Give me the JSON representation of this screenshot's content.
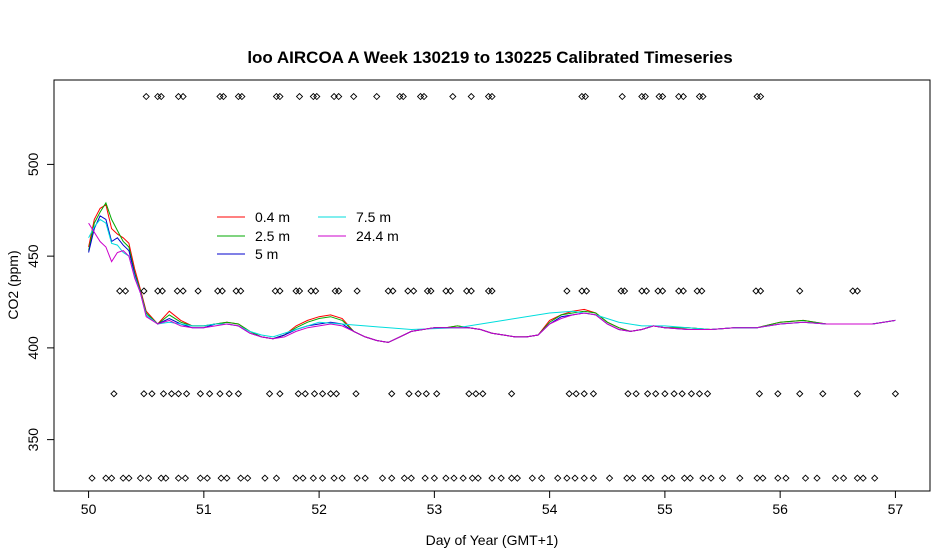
{
  "chart_data": {
    "type": "line",
    "title": "loo AIRCOA A  Week 130219 to 130225  Calibrated Timeseries",
    "xlabel": "Day of Year (GMT+1)",
    "ylabel": "CO2 (ppm)",
    "xlim": [
      49.7,
      57.3
    ],
    "ylim": [
      322,
      546
    ],
    "x_ticks": [
      50,
      51,
      52,
      53,
      54,
      55,
      56,
      57
    ],
    "y_ticks": [
      350,
      400,
      450,
      500
    ],
    "grid": false,
    "legend_position": "upper-left",
    "series": [
      {
        "name": "0.4 m",
        "color": "#ff0000",
        "x": [
          50.0,
          50.05,
          50.1,
          50.15,
          50.2,
          50.25,
          50.3,
          50.35,
          50.4,
          50.45,
          50.5,
          50.6,
          50.7,
          50.8,
          50.9,
          51.0,
          51.1,
          51.2,
          51.3,
          51.4,
          51.5,
          51.6,
          51.7,
          51.8,
          51.9,
          52.0,
          52.1,
          52.2,
          52.3,
          52.4,
          52.5,
          52.6,
          52.7,
          52.8,
          52.9,
          53.0,
          53.1,
          53.2,
          53.3,
          53.4,
          53.5,
          53.6,
          53.7,
          53.8,
          53.9,
          54.0,
          54.1,
          54.2,
          54.3,
          54.4,
          54.5,
          54.6,
          54.7,
          54.8,
          54.9,
          55.0,
          55.2,
          55.4,
          55.6,
          55.8,
          56.0,
          56.2,
          56.4,
          56.6,
          56.8,
          57.0
        ],
        "y": [
          455,
          470,
          476,
          478,
          465,
          462,
          460,
          457,
          443,
          432,
          420,
          413,
          420,
          415,
          412,
          412,
          413,
          414,
          413,
          409,
          406,
          405,
          407,
          412,
          415,
          417,
          418,
          416,
          409,
          406,
          404,
          403,
          406,
          409,
          410,
          411,
          411,
          412,
          411,
          410,
          408,
          407,
          406,
          406,
          407,
          415,
          418,
          420,
          421,
          419,
          414,
          411,
          409,
          410,
          412,
          411,
          411,
          410,
          411,
          411,
          414,
          415,
          413,
          413,
          413,
          415
        ]
      },
      {
        "name": "2.5 m",
        "color": "#00aa00",
        "x": [
          50.0,
          50.05,
          50.1,
          50.15,
          50.2,
          50.25,
          50.3,
          50.35,
          50.4,
          50.45,
          50.5,
          50.6,
          50.7,
          50.8,
          50.9,
          51.0,
          51.1,
          51.2,
          51.3,
          51.4,
          51.5,
          51.6,
          51.7,
          51.8,
          51.9,
          52.0,
          52.1,
          52.2,
          52.3,
          52.4,
          52.5,
          52.6,
          52.7,
          52.8,
          52.9,
          53.0,
          53.1,
          53.2,
          53.3,
          53.4,
          53.5,
          53.6,
          53.7,
          53.8,
          53.9,
          54.0,
          54.1,
          54.2,
          54.3,
          54.4,
          54.5,
          54.6,
          54.7,
          54.8,
          54.9,
          55.0,
          55.2,
          55.4,
          55.6,
          55.8,
          56.0,
          56.2,
          56.4,
          56.6,
          56.8,
          57.0
        ],
        "y": [
          453,
          468,
          474,
          479,
          470,
          464,
          458,
          455,
          441,
          431,
          419,
          413,
          418,
          414,
          412,
          412,
          413,
          414,
          413,
          409,
          406,
          405,
          407,
          411,
          414,
          416,
          417,
          415,
          409,
          406,
          404,
          403,
          406,
          409,
          410,
          411,
          411,
          412,
          411,
          410,
          408,
          407,
          406,
          406,
          407,
          414,
          418,
          419,
          420,
          419,
          414,
          411,
          409,
          410,
          412,
          411,
          411,
          410,
          411,
          411,
          414,
          415,
          413,
          413,
          413,
          415
        ]
      },
      {
        "name": "5 m",
        "color": "#0000cc",
        "x": [
          50.0,
          50.05,
          50.1,
          50.15,
          50.2,
          50.25,
          50.3,
          50.35,
          50.4,
          50.45,
          50.5,
          50.6,
          50.7,
          50.8,
          50.9,
          51.0,
          51.1,
          51.2,
          51.3,
          51.4,
          51.5,
          51.6,
          51.7,
          51.8,
          51.9,
          52.0,
          52.1,
          52.2,
          52.3,
          52.4,
          52.5,
          52.6,
          52.7,
          52.8,
          52.9,
          53.0,
          53.1,
          53.2,
          53.3,
          53.4,
          53.5,
          53.6,
          53.7,
          53.8,
          53.9,
          54.0,
          54.1,
          54.2,
          54.3,
          54.4,
          54.5,
          54.6,
          54.7,
          54.8,
          54.9,
          55.0,
          55.2,
          55.4,
          55.6,
          55.8,
          56.0,
          56.2,
          56.4,
          56.6,
          56.8,
          57.0
        ],
        "y": [
          452,
          465,
          472,
          470,
          458,
          460,
          456,
          453,
          440,
          430,
          418,
          413,
          416,
          413,
          411,
          411,
          413,
          413,
          412,
          408,
          406,
          405,
          407,
          410,
          412,
          413,
          414,
          413,
          409,
          406,
          404,
          403,
          406,
          409,
          410,
          411,
          411,
          411,
          411,
          410,
          408,
          407,
          406,
          406,
          407,
          413,
          417,
          418,
          419,
          418,
          413,
          410,
          409,
          410,
          412,
          411,
          410,
          410,
          411,
          411,
          413,
          414,
          413,
          413,
          413,
          415
        ]
      },
      {
        "name": "7.5 m",
        "color": "#00dddd",
        "x": [
          50.0,
          50.05,
          50.1,
          50.15,
          50.2,
          50.25,
          50.3,
          50.35,
          50.4,
          50.45,
          50.5,
          50.6,
          50.7,
          50.8,
          50.9,
          51.0,
          51.1,
          51.2,
          51.3,
          51.4,
          51.5,
          51.6,
          51.8,
          52.0,
          52.4,
          52.8,
          53.2,
          53.6,
          54.0,
          54.2,
          54.4,
          54.6,
          54.8,
          55.0,
          55.2,
          55.4,
          55.6,
          55.8,
          56.0,
          56.2,
          56.4,
          56.6,
          56.8,
          57.0
        ],
        "y": [
          460,
          466,
          470,
          468,
          457,
          456,
          452,
          450,
          439,
          430,
          418,
          413,
          414,
          413,
          412,
          412,
          413,
          413,
          412,
          409,
          407,
          406,
          410,
          414,
          412,
          410,
          411,
          415,
          419,
          420,
          418,
          414,
          412,
          412,
          411,
          410,
          411,
          411,
          413,
          414,
          413,
          413,
          413,
          415
        ]
      },
      {
        "name": "24.4 m",
        "color": "#cc00cc",
        "x": [
          50.0,
          50.05,
          50.1,
          50.15,
          50.2,
          50.25,
          50.3,
          50.35,
          50.4,
          50.45,
          50.5,
          50.6,
          50.7,
          50.8,
          50.9,
          51.0,
          51.1,
          51.2,
          51.3,
          51.4,
          51.5,
          51.6,
          51.7,
          51.8,
          51.9,
          52.0,
          52.1,
          52.2,
          52.3,
          52.4,
          52.5,
          52.6,
          52.7,
          52.8,
          52.9,
          53.0,
          53.1,
          53.2,
          53.3,
          53.4,
          53.5,
          53.6,
          53.7,
          53.8,
          53.9,
          54.0,
          54.1,
          54.2,
          54.3,
          54.4,
          54.5,
          54.6,
          54.7,
          54.8,
          54.9,
          55.0,
          55.2,
          55.4,
          55.6,
          55.8,
          56.0,
          56.2,
          56.4,
          56.6,
          56.8,
          57.0
        ],
        "y": [
          468,
          463,
          458,
          455,
          447,
          452,
          453,
          450,
          438,
          430,
          417,
          413,
          415,
          412,
          411,
          411,
          412,
          413,
          412,
          408,
          406,
          405,
          406,
          409,
          411,
          412,
          413,
          412,
          409,
          406,
          404,
          403,
          406,
          409,
          410,
          411,
          411,
          411,
          411,
          410,
          408,
          407,
          406,
          406,
          407,
          413,
          416,
          418,
          419,
          418,
          413,
          410,
          409,
          410,
          412,
          411,
          410,
          410,
          411,
          411,
          413,
          414,
          413,
          413,
          413,
          415
        ]
      }
    ],
    "markers": {
      "shape": "open-diamond",
      "rows": [
        {
          "y": 537,
          "x": [
            50.5,
            50.6,
            50.63,
            50.78,
            50.82,
            51.14,
            51.17,
            51.3,
            51.33,
            51.63,
            51.66,
            51.83,
            51.95,
            51.98,
            52.13,
            52.17,
            52.3,
            52.5,
            52.7,
            52.73,
            52.88,
            52.91,
            53.16,
            53.32,
            53.47,
            53.5,
            54.28,
            54.31,
            54.63,
            54.8,
            54.83,
            54.95,
            54.98,
            55.12,
            55.16,
            55.3,
            55.33,
            55.8,
            55.83
          ]
        },
        {
          "y": 431,
          "x": [
            50.27,
            50.32,
            50.48,
            50.6,
            50.64,
            50.77,
            50.82,
            50.95,
            51.12,
            51.16,
            51.28,
            51.32,
            51.62,
            51.66,
            51.8,
            51.83,
            51.93,
            51.97,
            52.14,
            52.17,
            52.33,
            52.6,
            52.64,
            52.77,
            52.82,
            52.94,
            52.97,
            53.1,
            53.14,
            53.28,
            53.32,
            53.47,
            53.5,
            54.15,
            54.28,
            54.32,
            54.62,
            54.65,
            54.8,
            54.84,
            54.94,
            54.98,
            55.12,
            55.16,
            55.28,
            55.32,
            55.79,
            55.83,
            56.17,
            56.63,
            56.67
          ]
        },
        {
          "y": 375,
          "x": [
            50.22,
            50.48,
            50.55,
            50.65,
            50.72,
            50.78,
            50.85,
            50.97,
            51.05,
            51.14,
            51.22,
            51.3,
            51.57,
            51.66,
            51.82,
            51.88,
            51.96,
            52.03,
            52.1,
            52.15,
            52.32,
            52.63,
            52.78,
            52.86,
            52.93,
            53.02,
            53.3,
            53.36,
            53.42,
            53.67,
            54.17,
            54.23,
            54.3,
            54.38,
            54.68,
            54.75,
            54.85,
            54.92,
            55.0,
            55.08,
            55.15,
            55.23,
            55.3,
            55.37,
            55.82,
            55.98,
            56.17,
            56.37,
            56.67,
            57.0
          ]
        },
        {
          "y": 329,
          "x": [
            50.03,
            50.15,
            50.2,
            50.3,
            50.35,
            50.45,
            50.52,
            50.63,
            50.67,
            50.78,
            50.84,
            50.97,
            51.03,
            51.15,
            51.2,
            51.32,
            51.38,
            51.53,
            51.63,
            51.8,
            51.86,
            51.95,
            52.03,
            52.13,
            52.2,
            52.33,
            52.4,
            52.55,
            52.63,
            52.74,
            52.8,
            52.92,
            53.0,
            53.1,
            53.17,
            53.25,
            53.33,
            53.38,
            53.5,
            53.58,
            53.67,
            53.72,
            53.85,
            53.93,
            54.07,
            54.15,
            54.22,
            54.3,
            54.38,
            54.52,
            54.67,
            54.72,
            54.83,
            54.88,
            55.0,
            55.06,
            55.17,
            55.22,
            55.33,
            55.4,
            55.5,
            55.65,
            55.8,
            55.85,
            55.98,
            56.05,
            56.22,
            56.32,
            56.48,
            56.55,
            56.67,
            56.72,
            56.82
          ]
        }
      ]
    }
  }
}
